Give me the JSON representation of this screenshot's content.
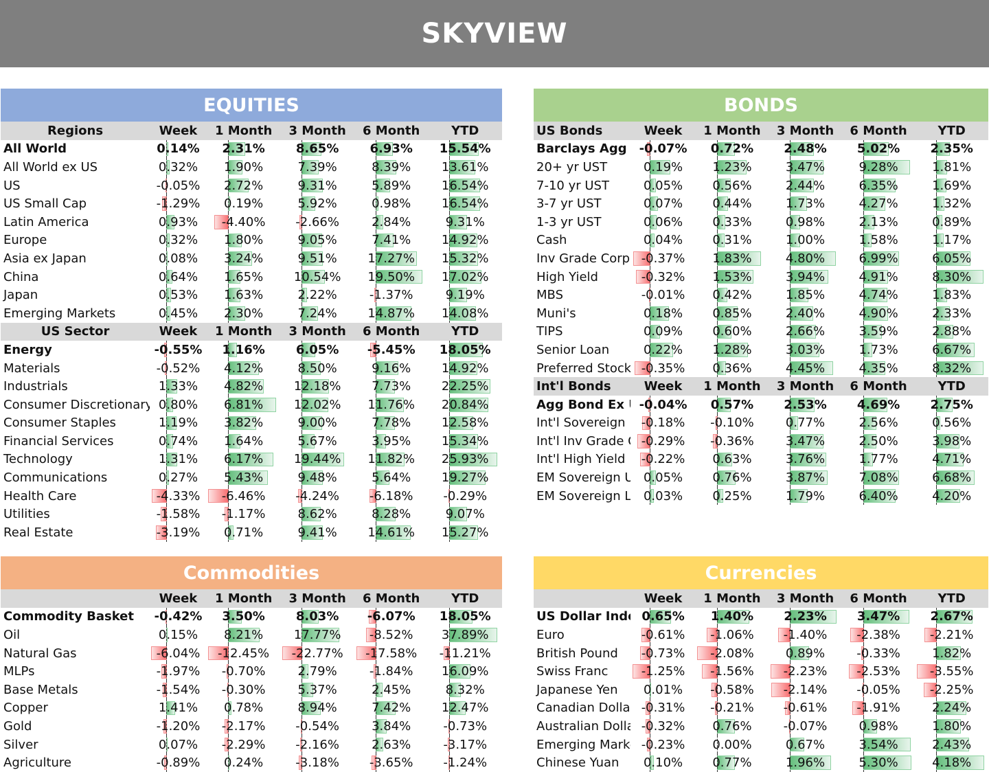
{
  "header": {
    "title": "SKYVIEW"
  },
  "colors": {
    "banner": "#7f7f7f",
    "equities": "#8eaadb",
    "bonds": "#a9d18e",
    "commodities": "#f4b183",
    "currencies": "#ffd966",
    "positive": "#63be7b",
    "negative": "#f8696b"
  },
  "equities": {
    "title": "EQUITIES",
    "sections": [
      {
        "name": "Regions",
        "cols": [
          "Week",
          "1 Month",
          "3 Month",
          "6 Month",
          "YTD"
        ],
        "rows": [
          [
            "All World",
            "0.14%",
            "2.31%",
            "8.65%",
            "6.93%",
            "15.54%"
          ],
          [
            "All World ex US",
            "0.32%",
            "1.90%",
            "7.39%",
            "8.39%",
            "13.61%"
          ],
          [
            "US",
            "-0.05%",
            "2.72%",
            "9.31%",
            "5.89%",
            "16.54%"
          ],
          [
            "US Small Cap",
            "-1.29%",
            "0.19%",
            "5.92%",
            "0.98%",
            "16.54%"
          ],
          [
            "Latin America",
            "0.93%",
            "-4.40%",
            "-2.66%",
            "2.84%",
            "9.31%"
          ],
          [
            "Europe",
            "0.32%",
            "1.80%",
            "9.05%",
            "7.41%",
            "14.92%"
          ],
          [
            "Asia ex Japan",
            "0.08%",
            "3.24%",
            "9.51%",
            "17.27%",
            "15.32%"
          ],
          [
            "China",
            "0.64%",
            "1.65%",
            "10.54%",
            "19.50%",
            "17.02%"
          ],
          [
            "Japan",
            "0.53%",
            "1.63%",
            "2.22%",
            "-1.37%",
            "9.19%"
          ],
          [
            "Emerging Markets",
            "0.45%",
            "2.30%",
            "7.24%",
            "14.87%",
            "14.08%"
          ]
        ]
      },
      {
        "name": "US Sector",
        "cols": [
          "Week",
          "1 Month",
          "3 Month",
          "6 Month",
          "YTD"
        ],
        "rows": [
          [
            "Energy",
            "-0.55%",
            "1.16%",
            "6.05%",
            "-5.45%",
            "18.05%"
          ],
          [
            "Materials",
            "-0.52%",
            "4.12%",
            "8.50%",
            "9.16%",
            "14.92%"
          ],
          [
            "Industrials",
            "1.33%",
            "4.82%",
            "12.18%",
            "7.73%",
            "22.25%"
          ],
          [
            "Consumer Discretionary",
            "0.80%",
            "6.81%",
            "12.02%",
            "11.76%",
            "20.84%"
          ],
          [
            "Consumer Staples",
            "1.19%",
            "3.82%",
            "9.00%",
            "7.78%",
            "12.58%"
          ],
          [
            "Financial Services",
            "0.74%",
            "1.64%",
            "5.67%",
            "3.95%",
            "15.34%"
          ],
          [
            "Technology",
            "1.31%",
            "6.17%",
            "19.44%",
            "11.82%",
            "25.93%"
          ],
          [
            "Communications",
            "0.27%",
            "5.43%",
            "9.48%",
            "5.64%",
            "19.27%"
          ],
          [
            "Health Care",
            "-4.33%",
            "-6.46%",
            "-4.24%",
            "-6.18%",
            "-0.29%"
          ],
          [
            "Utilities",
            "-1.58%",
            "-1.17%",
            "8.62%",
            "8.28%",
            "9.07%"
          ],
          [
            "Real Estate",
            "-3.19%",
            "0.71%",
            "9.41%",
            "14.61%",
            "15.27%"
          ]
        ]
      }
    ]
  },
  "bonds": {
    "title": "BONDS",
    "sections": [
      {
        "name": "US Bonds",
        "cols": [
          "Week",
          "1 Month",
          "3 Month",
          "6 Month",
          "YTD"
        ],
        "rows": [
          [
            "Barclays Agg",
            "-0.07%",
            "0.72%",
            "2.48%",
            "5.02%",
            "2.35%"
          ],
          [
            "20+ yr UST",
            "0.19%",
            "1.23%",
            "3.47%",
            "9.28%",
            "1.81%"
          ],
          [
            "7-10 yr UST",
            "0.05%",
            "0.56%",
            "2.44%",
            "6.35%",
            "1.69%"
          ],
          [
            "3-7 yr UST",
            "0.07%",
            "0.44%",
            "1.73%",
            "4.27%",
            "1.32%"
          ],
          [
            "1-3 yr UST",
            "0.06%",
            "0.33%",
            "0.98%",
            "2.13%",
            "0.89%"
          ],
          [
            "Cash",
            "0.04%",
            "0.31%",
            "1.00%",
            "1.58%",
            "1.17%"
          ],
          [
            "Inv Grade Corp",
            "-0.37%",
            "1.83%",
            "4.80%",
            "6.99%",
            "6.05%"
          ],
          [
            "High Yield",
            "-0.32%",
            "1.53%",
            "3.94%",
            "4.91%",
            "8.30%"
          ],
          [
            "MBS",
            "-0.01%",
            "0.42%",
            "1.85%",
            "4.74%",
            "1.83%"
          ],
          [
            "Muni's",
            "0.18%",
            "0.85%",
            "2.40%",
            "4.90%",
            "2.33%"
          ],
          [
            "TIPS",
            "0.09%",
            "0.60%",
            "2.66%",
            "3.59%",
            "2.88%"
          ],
          [
            "Senior Loan",
            "0.22%",
            "1.28%",
            "3.03%",
            "1.73%",
            "6.67%"
          ],
          [
            "Preferred Stock",
            "-0.35%",
            "0.36%",
            "4.45%",
            "4.35%",
            "8.32%"
          ]
        ]
      },
      {
        "name": "Int'l Bonds",
        "cols": [
          "Week",
          "1 Month",
          "3 Month",
          "6 Month",
          "YTD"
        ],
        "rows": [
          [
            "Agg Bond Ex US",
            "-0.04%",
            "0.57%",
            "2.53%",
            "4.69%",
            "2.75%"
          ],
          [
            "Int'l Sovereign",
            "-0.18%",
            "-0.10%",
            "0.77%",
            "2.56%",
            "0.56%"
          ],
          [
            "Int'l Inv Grade Co",
            "-0.29%",
            "-0.36%",
            "3.47%",
            "2.50%",
            "3.98%"
          ],
          [
            "Int'l High Yield",
            "-0.22%",
            "0.63%",
            "3.76%",
            "1.77%",
            "4.71%"
          ],
          [
            "EM Sovereign US",
            "0.05%",
            "0.76%",
            "3.87%",
            "7.08%",
            "6.68%"
          ],
          [
            "EM Sovereign LC",
            "0.03%",
            "0.25%",
            "1.79%",
            "6.40%",
            "4.20%"
          ]
        ]
      }
    ]
  },
  "commodities": {
    "title": "Commodities",
    "sections": [
      {
        "name": "",
        "cols": [
          "Week",
          "1 Month",
          "3 Month",
          "6 Month",
          "YTD"
        ],
        "rows": [
          [
            "Commodity Basket",
            "-0.42%",
            "3.50%",
            "8.03%",
            "-6.07%",
            "18.05%"
          ],
          [
            "Oil",
            "0.15%",
            "8.21%",
            "17.77%",
            "-8.52%",
            "37.89%"
          ],
          [
            "Natural Gas",
            "-6.04%",
            "-12.45%",
            "-22.77%",
            "-17.58%",
            "-11.21%"
          ],
          [
            "MLPs",
            "-1.97%",
            "-0.70%",
            "2.79%",
            "-1.84%",
            "16.09%"
          ],
          [
            "Base Metals",
            "-1.54%",
            "-0.30%",
            "5.37%",
            "2.45%",
            "8.32%"
          ],
          [
            "Copper",
            "1.41%",
            "0.78%",
            "8.94%",
            "7.42%",
            "12.47%"
          ],
          [
            "Gold",
            "-1.20%",
            "-2.17%",
            "-0.54%",
            "3.84%",
            "-0.73%"
          ],
          [
            "Silver",
            "0.07%",
            "-2.29%",
            "-2.16%",
            "2.63%",
            "-3.17%"
          ],
          [
            "Agriculture",
            "-0.89%",
            "0.24%",
            "-3.18%",
            "-3.65%",
            "-1.24%"
          ]
        ]
      }
    ]
  },
  "currencies": {
    "title": "Currencies",
    "sections": [
      {
        "name": "",
        "cols": [
          "Week",
          "1 Month",
          "3 Month",
          "6 Month",
          "YTD"
        ],
        "rows": [
          [
            "US Dollar Index",
            "0.65%",
            "1.40%",
            "2.23%",
            "3.47%",
            "2.67%"
          ],
          [
            "Euro",
            "-0.61%",
            "-1.06%",
            "-1.40%",
            "-2.38%",
            "-2.21%"
          ],
          [
            "British Pound",
            "-0.73%",
            "-2.08%",
            "0.89%",
            "-0.33%",
            "1.82%"
          ],
          [
            "Swiss Franc",
            "-1.25%",
            "-1.56%",
            "-2.23%",
            "-2.53%",
            "-3.55%"
          ],
          [
            "Japanese Yen",
            "0.01%",
            "-0.58%",
            "-2.14%",
            "-0.05%",
            "-2.25%"
          ],
          [
            "Canadian Dollar",
            "-0.31%",
            "-0.21%",
            "-0.61%",
            "-1.91%",
            "2.24%"
          ],
          [
            "Australian Dollar",
            "-0.32%",
            "0.76%",
            "-0.07%",
            "0.98%",
            "1.80%"
          ],
          [
            "Emerging Market",
            "-0.23%",
            "0.00%",
            "0.67%",
            "3.54%",
            "2.43%"
          ],
          [
            "Chinese Yuan",
            "0.10%",
            "0.77%",
            "1.96%",
            "5.30%",
            "4.18%"
          ]
        ]
      }
    ]
  }
}
